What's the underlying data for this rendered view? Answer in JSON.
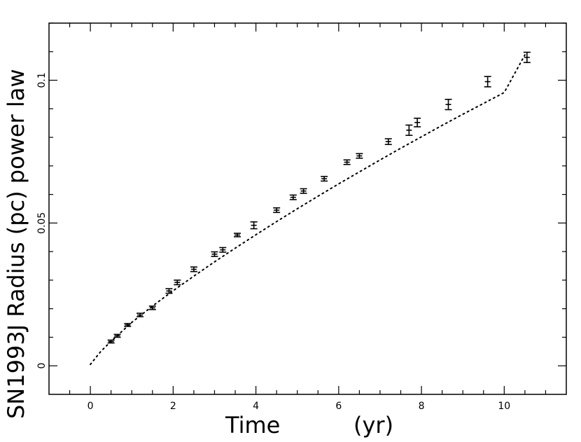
{
  "chart_data": {
    "type": "scatter",
    "xlabel": "Time",
    "xlabel_unit": "(yr)",
    "ylabel": "SN1993J Radius (pc)  power law",
    "xlim": [
      -1,
      11.5
    ],
    "ylim": [
      -0.01,
      0.12
    ],
    "x_ticks": [
      0,
      2,
      4,
      6,
      8,
      10
    ],
    "x_tick_labels": [
      "0",
      "2",
      "4",
      "6",
      "8",
      "10"
    ],
    "x_minor_step": 0.5,
    "y_ticks": [
      0,
      0.05,
      0.1
    ],
    "y_tick_labels": [
      "0",
      "0.05",
      "0.1"
    ],
    "y_minor_step": 0.01,
    "grid": false,
    "series": [
      {
        "type": "errorbar",
        "x": [
          0.5,
          0.65,
          0.9,
          1.2,
          1.5,
          1.9,
          2.1,
          2.5,
          3.0,
          3.2,
          3.55,
          3.95,
          4.5,
          4.9,
          5.15,
          5.65,
          6.2,
          6.5,
          7.2,
          7.7,
          7.9,
          8.65,
          9.6,
          10.55
        ],
        "y": [
          0.0085,
          0.0105,
          0.0143,
          0.0178,
          0.0203,
          0.0262,
          0.0292,
          0.0338,
          0.0391,
          0.0406,
          0.0458,
          0.0492,
          0.0545,
          0.059,
          0.0612,
          0.0655,
          0.0713,
          0.0735,
          0.0785,
          0.0825,
          0.0852,
          0.0915,
          0.0995,
          0.108
        ],
        "yerr": [
          0.0005,
          0.0005,
          0.0005,
          0.0006,
          0.0006,
          0.0008,
          0.0008,
          0.0008,
          0.0008,
          0.0008,
          0.0006,
          0.0012,
          0.0008,
          0.0008,
          0.0008,
          0.0008,
          0.0008,
          0.0008,
          0.001,
          0.0018,
          0.0015,
          0.0018,
          0.0018,
          0.0018
        ]
      },
      {
        "type": "line",
        "style": "dotted",
        "x": [
          0,
          0.25,
          0.5,
          1,
          1.5,
          2,
          2.5,
          3,
          3.5,
          4,
          4.5,
          5,
          5.5,
          6,
          6.5,
          7,
          7.5,
          8,
          8.5,
          9,
          9.5,
          10,
          10.5
        ],
        "y": [
          0.0005,
          0.005,
          0.0086,
          0.0152,
          0.0209,
          0.0263,
          0.0314,
          0.0364,
          0.0412,
          0.0459,
          0.0505,
          0.055,
          0.0594,
          0.0637,
          0.0679,
          0.0721,
          0.0762,
          0.0802,
          0.0842,
          0.0881,
          0.0919,
          0.0957,
          0.1089
        ]
      }
    ]
  }
}
